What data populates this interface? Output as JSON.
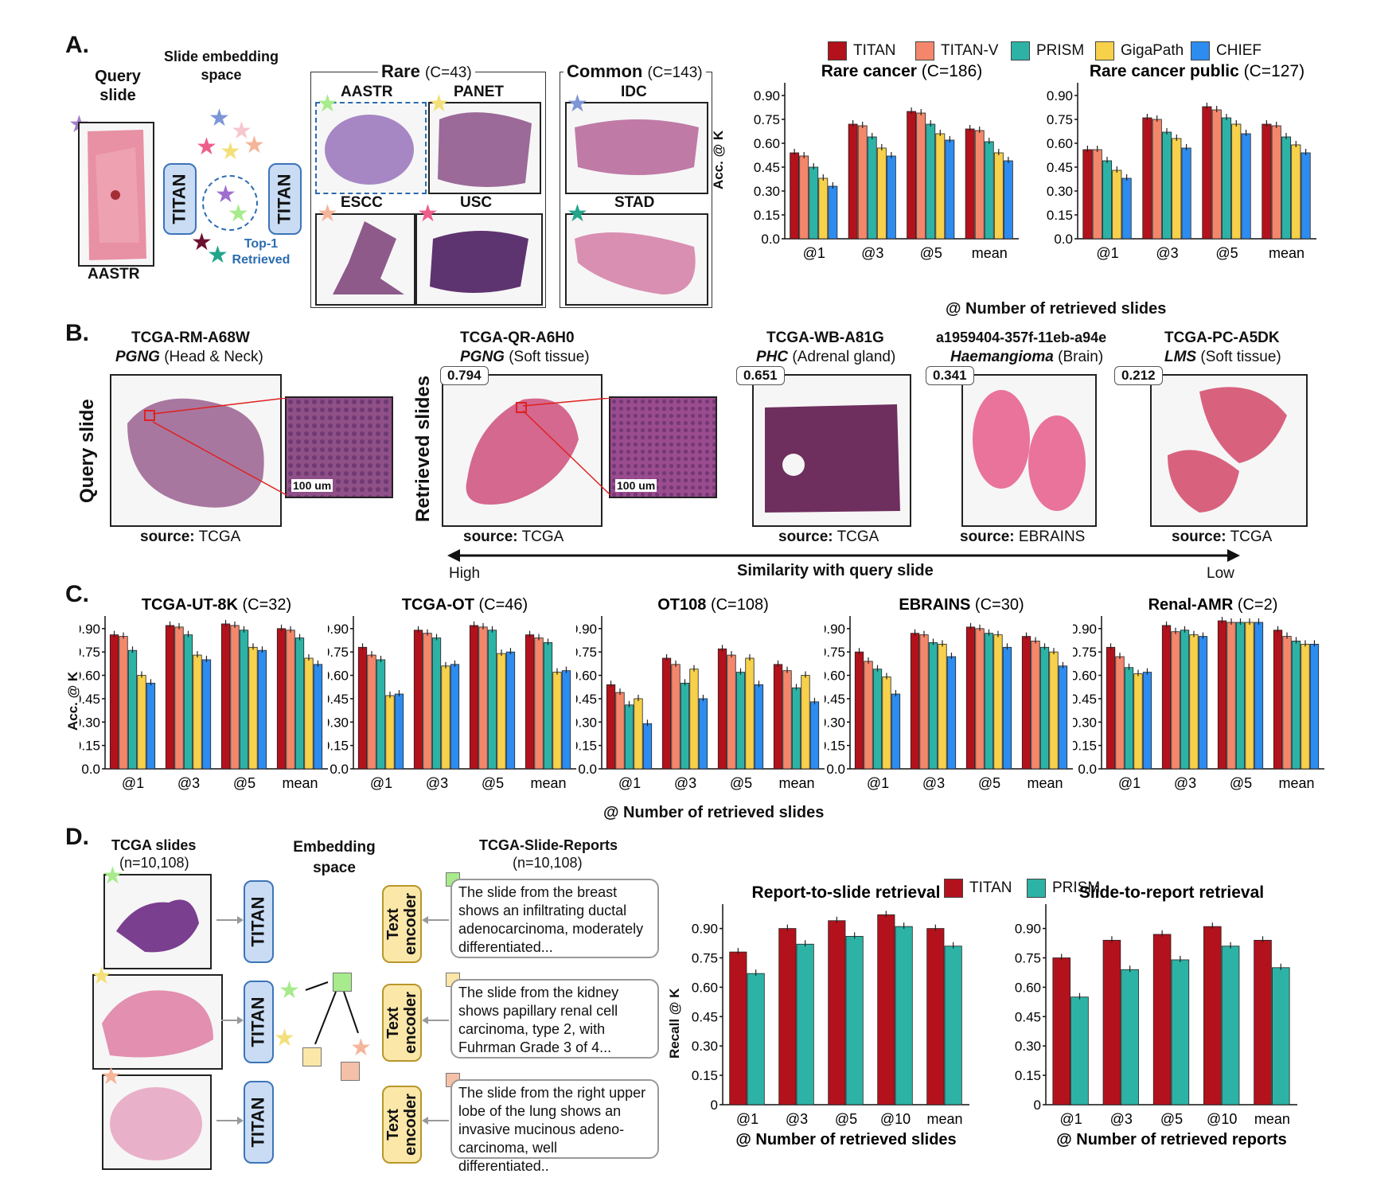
{
  "colors": {
    "TITAN": "#b3121c",
    "TITAN-V": "#f4876b",
    "PRISM": "#2db3a6",
    "GigaPath": "#f7d14a",
    "CHIEF": "#2d8cf0"
  },
  "panelA": {
    "letter": "A.",
    "query_title": "Query slide",
    "query_label": "AASTR",
    "embed_title": "Slide embedding space",
    "titan": "TITAN",
    "top1": "Top-1 Retrieved",
    "rare_title": "Rare",
    "rare_count": "(C=43)",
    "common_title": "Common",
    "common_count": "(C=143)",
    "rare_slides": [
      "AASTR",
      "PANET",
      "ESCC",
      "USC"
    ],
    "common_slides": [
      "IDC",
      "STAD"
    ],
    "legend": [
      "TITAN",
      "TITAN-V",
      "PRISM",
      "GigaPath",
      "CHIEF"
    ],
    "xlabel": "@ Number of retrieved slides",
    "ylabel": "Acc. @ K"
  },
  "panelB": {
    "letter": "B.",
    "query_side_label": "Query slide",
    "retrieved_side_label": "Retrieved slides",
    "query": {
      "id": "TCGA-RM-A68W",
      "dx": "PGNG",
      "site": "(Head & Neck)",
      "source_label": "source:",
      "source": "TCGA"
    },
    "retrieved": [
      {
        "id": "TCGA-QR-A6H0",
        "dx": "PGNG",
        "site": "(Soft tissue)",
        "score": "0.794",
        "source_label": "source:",
        "source": "TCGA"
      },
      {
        "id": "TCGA-WB-A81G",
        "dx": "PHC",
        "site": "(Adrenal gland)",
        "score": "0.651",
        "source_label": "source:",
        "source": "TCGA"
      },
      {
        "id": "a1959404-357f-11eb-a94e",
        "dx": "Haemangioma",
        "site": "(Brain)",
        "score": "0.341",
        "source_label": "source:",
        "source": "EBRAINS"
      },
      {
        "id": "TCGA-PC-A5DK",
        "dx": "LMS",
        "site": "(Soft tissue)",
        "score": "0.212",
        "source_label": "source:",
        "source": "TCGA"
      }
    ],
    "scale_bar": "100 um",
    "arrow_high": "High",
    "arrow_low": "Low",
    "arrow_title": "Similarity with query slide"
  },
  "panelC": {
    "letter": "C.",
    "xlabel": "@ Number of retrieved slides",
    "ylabel": "Acc. @ K"
  },
  "panelD": {
    "letter": "D.",
    "slides_title": "TCGA slides",
    "slides_count": "(n=10,108)",
    "embed_title": "Embedding space",
    "reports_title": "TCGA-Slide-Reports",
    "reports_count": "(n=10,108)",
    "titan": "TITAN",
    "text_encoder": "Text encoder",
    "reports": [
      "The slide from the breast shows an infiltrating ductal adenocarcinoma, moderately differentiated...",
      "The slide from the kidney shows papillary renal cell carcinoma, type 2, with Fuhrman Grade 3 of 4...",
      "The slide from the right upper lobe of the lung shows an invasive mucinous adeno-carcinoma, well differentiated.."
    ],
    "legend": [
      "TITAN",
      "PRISM"
    ],
    "ylabel": "Recall @ K"
  },
  "chart_data": [
    {
      "type": "bar",
      "panel": "A",
      "title": "Rare cancer",
      "title_suffix": "(C=186)",
      "categories": [
        "@1",
        "@3",
        "@5",
        "mean"
      ],
      "ylim": [
        0,
        0.95
      ],
      "yticks": [
        "0.90",
        "0.75",
        "0.60",
        "0.45",
        "0.30",
        "0.15",
        "0.0"
      ],
      "series": [
        {
          "name": "TITAN",
          "values": [
            0.54,
            0.72,
            0.8,
            0.69
          ]
        },
        {
          "name": "TITAN-V",
          "values": [
            0.52,
            0.71,
            0.79,
            0.68
          ]
        },
        {
          "name": "PRISM",
          "values": [
            0.45,
            0.64,
            0.72,
            0.61
          ]
        },
        {
          "name": "GigaPath",
          "values": [
            0.38,
            0.57,
            0.66,
            0.54
          ]
        },
        {
          "name": "CHIEF",
          "values": [
            0.33,
            0.52,
            0.62,
            0.49
          ]
        }
      ]
    },
    {
      "type": "bar",
      "panel": "A",
      "title": "Rare cancer public",
      "title_suffix": "(C=127)",
      "categories": [
        "@1",
        "@3",
        "@5",
        "mean"
      ],
      "ylim": [
        0,
        0.95
      ],
      "yticks": [
        "0.90",
        "0.75",
        "0.60",
        "0.45",
        "0.30",
        "0.15",
        "0.0"
      ],
      "series": [
        {
          "name": "TITAN",
          "values": [
            0.56,
            0.76,
            0.83,
            0.72
          ]
        },
        {
          "name": "TITAN-V",
          "values": [
            0.56,
            0.75,
            0.81,
            0.71
          ]
        },
        {
          "name": "PRISM",
          "values": [
            0.49,
            0.67,
            0.76,
            0.64
          ]
        },
        {
          "name": "GigaPath",
          "values": [
            0.43,
            0.63,
            0.72,
            0.59
          ]
        },
        {
          "name": "CHIEF",
          "values": [
            0.38,
            0.57,
            0.66,
            0.54
          ]
        }
      ]
    },
    {
      "type": "bar",
      "panel": "C",
      "title": "TCGA-UT-8K",
      "title_suffix": "(C=32)",
      "categories": [
        "@1",
        "@3",
        "@5",
        "mean"
      ],
      "ylim": [
        0,
        0.95
      ],
      "yticks": [
        "0.90",
        "0.75",
        "0.60",
        "0.45",
        "0.30",
        "0.15",
        "0.0"
      ],
      "series": [
        {
          "name": "TITAN",
          "values": [
            0.86,
            0.92,
            0.93,
            0.9
          ]
        },
        {
          "name": "TITAN-V",
          "values": [
            0.85,
            0.91,
            0.92,
            0.89
          ]
        },
        {
          "name": "PRISM",
          "values": [
            0.76,
            0.86,
            0.89,
            0.84
          ]
        },
        {
          "name": "GigaPath",
          "values": [
            0.6,
            0.73,
            0.78,
            0.71
          ]
        },
        {
          "name": "CHIEF",
          "values": [
            0.55,
            0.7,
            0.76,
            0.67
          ]
        }
      ]
    },
    {
      "type": "bar",
      "panel": "C",
      "title": "TCGA-OT",
      "title_suffix": "(C=46)",
      "categories": [
        "@1",
        "@3",
        "@5",
        "mean"
      ],
      "ylim": [
        0,
        0.95
      ],
      "yticks": [
        "0.90",
        "0.75",
        "0.60",
        "0.45",
        "0.30",
        "0.15",
        "0.0"
      ],
      "series": [
        {
          "name": "TITAN",
          "values": [
            0.78,
            0.89,
            0.92,
            0.86
          ]
        },
        {
          "name": "TITAN-V",
          "values": [
            0.73,
            0.87,
            0.91,
            0.84
          ]
        },
        {
          "name": "PRISM",
          "values": [
            0.7,
            0.84,
            0.89,
            0.81
          ]
        },
        {
          "name": "GigaPath",
          "values": [
            0.47,
            0.66,
            0.74,
            0.62
          ]
        },
        {
          "name": "CHIEF",
          "values": [
            0.48,
            0.67,
            0.75,
            0.63
          ]
        }
      ]
    },
    {
      "type": "bar",
      "panel": "C",
      "title": "OT108",
      "title_suffix": "(C=108)",
      "categories": [
        "@1",
        "@3",
        "@5",
        "mean"
      ],
      "ylim": [
        0,
        0.95
      ],
      "yticks": [
        "0.90",
        "0.75",
        "0.60",
        "0.45",
        "0.30",
        "0.15",
        "0.0"
      ],
      "series": [
        {
          "name": "TITAN",
          "values": [
            0.54,
            0.71,
            0.77,
            0.67
          ]
        },
        {
          "name": "TITAN-V",
          "values": [
            0.49,
            0.67,
            0.73,
            0.63
          ]
        },
        {
          "name": "PRISM",
          "values": [
            0.41,
            0.55,
            0.62,
            0.52
          ]
        },
        {
          "name": "GigaPath",
          "values": [
            0.45,
            0.64,
            0.71,
            0.6
          ]
        },
        {
          "name": "CHIEF",
          "values": [
            0.29,
            0.45,
            0.54,
            0.43
          ]
        }
      ]
    },
    {
      "type": "bar",
      "panel": "C",
      "title": "EBRAINS",
      "title_suffix": "(C=30)",
      "categories": [
        "@1",
        "@3",
        "@5",
        "mean"
      ],
      "ylim": [
        0,
        0.95
      ],
      "yticks": [
        "0.90",
        "0.75",
        "0.60",
        "0.45",
        "0.30",
        "0.15",
        "0.0"
      ],
      "series": [
        {
          "name": "TITAN",
          "values": [
            0.75,
            0.87,
            0.91,
            0.85
          ]
        },
        {
          "name": "TITAN-V",
          "values": [
            0.69,
            0.86,
            0.9,
            0.82
          ]
        },
        {
          "name": "PRISM",
          "values": [
            0.64,
            0.81,
            0.87,
            0.78
          ]
        },
        {
          "name": "GigaPath",
          "values": [
            0.59,
            0.8,
            0.86,
            0.75
          ]
        },
        {
          "name": "CHIEF",
          "values": [
            0.48,
            0.72,
            0.78,
            0.66
          ]
        }
      ]
    },
    {
      "type": "bar",
      "panel": "C",
      "title": "Renal-AMR",
      "title_suffix": "(C=2)",
      "categories": [
        "@1",
        "@3",
        "@5",
        "mean"
      ],
      "ylim": [
        0,
        0.95
      ],
      "yticks": [
        "0.90",
        "0.75",
        "0.60",
        "0.45",
        "0.30",
        "0.15",
        "0.0"
      ],
      "series": [
        {
          "name": "TITAN",
          "values": [
            0.78,
            0.92,
            0.95,
            0.89
          ]
        },
        {
          "name": "TITAN-V",
          "values": [
            0.72,
            0.88,
            0.94,
            0.85
          ]
        },
        {
          "name": "PRISM",
          "values": [
            0.65,
            0.89,
            0.94,
            0.82
          ]
        },
        {
          "name": "GigaPath",
          "values": [
            0.61,
            0.86,
            0.94,
            0.8
          ]
        },
        {
          "name": "CHIEF",
          "values": [
            0.62,
            0.85,
            0.94,
            0.8
          ]
        }
      ]
    },
    {
      "type": "bar",
      "panel": "D",
      "title": "Report-to-slide retrieval",
      "categories": [
        "@1",
        "@3",
        "@5",
        "@10",
        "mean"
      ],
      "xlabel": "@ Number of retrieved slides",
      "ylim": [
        0,
        1.0
      ],
      "yticks": [
        "0.90",
        "0.75",
        "0.60",
        "0.45",
        "0.30",
        "0.15",
        "0"
      ],
      "series": [
        {
          "name": "TITAN",
          "values": [
            0.78,
            0.9,
            0.94,
            0.97,
            0.9
          ]
        },
        {
          "name": "PRISM",
          "values": [
            0.67,
            0.82,
            0.86,
            0.91,
            0.81
          ]
        }
      ]
    },
    {
      "type": "bar",
      "panel": "D",
      "title": "Slide-to-report retrieval",
      "categories": [
        "@1",
        "@3",
        "@5",
        "@10",
        "mean"
      ],
      "xlabel": "@ Number of retrieved reports",
      "ylim": [
        0,
        1.0
      ],
      "yticks": [
        "0.90",
        "0.75",
        "0.60",
        "0.45",
        "0.30",
        "0.15",
        "0"
      ],
      "series": [
        {
          "name": "TITAN",
          "values": [
            0.75,
            0.84,
            0.87,
            0.91,
            0.84
          ]
        },
        {
          "name": "PRISM",
          "values": [
            0.55,
            0.69,
            0.74,
            0.81,
            0.7
          ]
        }
      ]
    }
  ]
}
